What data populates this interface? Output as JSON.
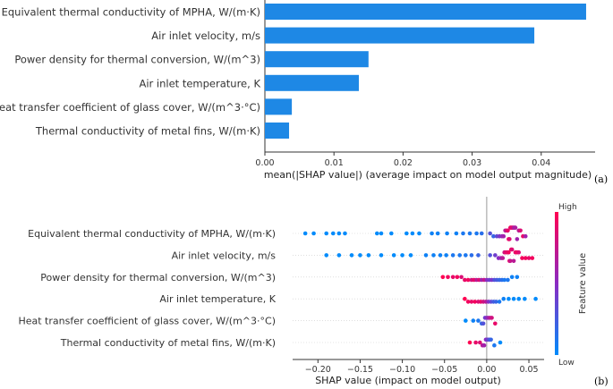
{
  "panel_labels": {
    "a": "(a)",
    "b": "(b)"
  },
  "chart_data": [
    {
      "type": "bar",
      "orientation": "horizontal",
      "categories": [
        "Equivalent thermal conductivity of MPHA, W/(m·K)",
        "Air inlet velocity, m/s",
        "Power density for thermal conversion, W/(m^3)",
        "Air inlet temperature, K",
        "Heat transfer coefficient of glass cover, W/(m^3·°C)",
        "Thermal conductivity of metal fins, W/(m·K)"
      ],
      "values": [
        0.0465,
        0.039,
        0.015,
        0.0136,
        0.0039,
        0.0035
      ],
      "xlabel": "mean(|SHAP value|) (average impact on model output magnitude)",
      "xlim": [
        0,
        0.0478
      ],
      "xticks": [
        0.0,
        0.01,
        0.02,
        0.03,
        0.04
      ],
      "xtick_labels": [
        "0.00",
        "0.01",
        "0.02",
        "0.03",
        "0.04"
      ],
      "bar_color": "#1e88e5"
    },
    {
      "type": "scatter",
      "subtype": "beeswarm",
      "categories": [
        "Equivalent thermal conductivity of MPHA, W/(m·K)",
        "Air inlet velocity, m/s",
        "Power density for thermal conversion, W/(m^3)",
        "Air inlet temperature, K",
        "Heat transfer coefficient of glass cover, W/(m^3·°C)",
        "Thermal conductivity of metal fins, W/(m·K)"
      ],
      "xlabel": "SHAP value (impact on model output)",
      "xlim": [
        -0.23,
        0.068
      ],
      "xticks": [
        -0.2,
        -0.15,
        -0.1,
        -0.05,
        0.0,
        0.05
      ],
      "xtick_labels": [
        "−0.20",
        "−0.15",
        "−0.10",
        "−0.05",
        "0.00",
        "0.05"
      ],
      "colorbar": {
        "label": "Feature value",
        "high": "High",
        "low": "Low",
        "high_color": "#ff0052",
        "mid_color": "#8a2bc2",
        "low_color": "#008bfb"
      },
      "series": [
        {
          "values": [
            {
              "x": -0.215,
              "v": 0
            },
            {
              "x": -0.205,
              "v": 0
            },
            {
              "x": -0.19,
              "v": 0
            },
            {
              "x": -0.182,
              "v": 0
            },
            {
              "x": -0.175,
              "v": 0
            },
            {
              "x": -0.168,
              "v": 0
            },
            {
              "x": -0.13,
              "v": 0
            },
            {
              "x": -0.125,
              "v": 0
            },
            {
              "x": -0.113,
              "v": 0
            },
            {
              "x": -0.095,
              "v": 0
            },
            {
              "x": -0.088,
              "v": 0
            },
            {
              "x": -0.08,
              "v": 0
            },
            {
              "x": -0.065,
              "v": 0.05
            },
            {
              "x": -0.058,
              "v": 0.05
            },
            {
              "x": -0.047,
              "v": 0.05
            },
            {
              "x": -0.036,
              "v": 0.05
            },
            {
              "x": -0.028,
              "v": 0.1
            },
            {
              "x": -0.02,
              "v": 0.1
            },
            {
              "x": -0.012,
              "v": 0.1
            },
            {
              "x": -0.006,
              "v": 0.15
            },
            {
              "x": 0.004,
              "v": 0.3
            },
            {
              "x": 0.008,
              "v": 0.2
            },
            {
              "x": 0.012,
              "v": 0.35
            },
            {
              "x": 0.015,
              "v": 0.45
            },
            {
              "x": 0.018,
              "v": 0.55
            },
            {
              "x": 0.02,
              "v": 0.6
            },
            {
              "x": 0.022,
              "v": 0.7
            },
            {
              "x": 0.024,
              "v": 0.8
            },
            {
              "x": 0.025,
              "v": 0.9
            },
            {
              "x": 0.026,
              "v": 0.95
            },
            {
              "x": 0.027,
              "v": 0.85
            },
            {
              "x": 0.028,
              "v": 0.9
            },
            {
              "x": 0.029,
              "v": 0.95
            },
            {
              "x": 0.03,
              "v": 0.8
            },
            {
              "x": 0.031,
              "v": 0.9
            },
            {
              "x": 0.032,
              "v": 0.7
            },
            {
              "x": 0.033,
              "v": 0.6
            },
            {
              "x": 0.034,
              "v": 0.65
            },
            {
              "x": 0.036,
              "v": 0.6
            },
            {
              "x": 0.038,
              "v": 0.7
            },
            {
              "x": 0.04,
              "v": 0.85
            },
            {
              "x": 0.043,
              "v": 0.9
            },
            {
              "x": 0.046,
              "v": 0.6
            }
          ]
        },
        {
          "values": [
            {
              "x": -0.19,
              "v": 0
            },
            {
              "x": -0.175,
              "v": 0
            },
            {
              "x": -0.16,
              "v": 0
            },
            {
              "x": -0.15,
              "v": 0
            },
            {
              "x": -0.14,
              "v": 0
            },
            {
              "x": -0.125,
              "v": 0
            },
            {
              "x": -0.11,
              "v": 0
            },
            {
              "x": -0.1,
              "v": 0
            },
            {
              "x": -0.09,
              "v": 0
            },
            {
              "x": -0.072,
              "v": 0.05
            },
            {
              "x": -0.063,
              "v": 0.05
            },
            {
              "x": -0.055,
              "v": 0.05
            },
            {
              "x": -0.048,
              "v": 0.05
            },
            {
              "x": -0.04,
              "v": 0.1
            },
            {
              "x": -0.032,
              "v": 0.1
            },
            {
              "x": -0.025,
              "v": 0.1
            },
            {
              "x": -0.018,
              "v": 0.15
            },
            {
              "x": -0.01,
              "v": 0.2
            },
            {
              "x": 0.004,
              "v": 0.3
            },
            {
              "x": 0.01,
              "v": 0.4
            },
            {
              "x": 0.014,
              "v": 0.5
            },
            {
              "x": 0.017,
              "v": 0.6
            },
            {
              "x": 0.019,
              "v": 0.7
            },
            {
              "x": 0.021,
              "v": 0.8
            },
            {
              "x": 0.023,
              "v": 0.9
            },
            {
              "x": 0.025,
              "v": 0.85
            },
            {
              "x": 0.026,
              "v": 0.95
            },
            {
              "x": 0.027,
              "v": 0.9
            },
            {
              "x": 0.028,
              "v": 0.75
            },
            {
              "x": 0.029,
              "v": 0.95
            },
            {
              "x": 0.03,
              "v": 0.85
            },
            {
              "x": 0.032,
              "v": 0.7
            },
            {
              "x": 0.034,
              "v": 0.9
            },
            {
              "x": 0.036,
              "v": 0.95
            },
            {
              "x": 0.038,
              "v": 0.85
            },
            {
              "x": 0.042,
              "v": 0.95
            },
            {
              "x": 0.046,
              "v": 0.95
            },
            {
              "x": 0.05,
              "v": 0.9
            },
            {
              "x": 0.054,
              "v": 0.95
            }
          ]
        },
        {
          "values": [
            {
              "x": -0.052,
              "v": 1
            },
            {
              "x": -0.046,
              "v": 0.95
            },
            {
              "x": -0.04,
              "v": 0.9
            },
            {
              "x": -0.035,
              "v": 0.95
            },
            {
              "x": -0.03,
              "v": 0.85
            },
            {
              "x": -0.026,
              "v": 0.9
            },
            {
              "x": -0.022,
              "v": 0.95
            },
            {
              "x": -0.018,
              "v": 0.8
            },
            {
              "x": -0.015,
              "v": 0.9
            },
            {
              "x": -0.012,
              "v": 0.7
            },
            {
              "x": -0.009,
              "v": 0.85
            },
            {
              "x": -0.006,
              "v": 0.6
            },
            {
              "x": -0.003,
              "v": 0.75
            },
            {
              "x": 0.0,
              "v": 0.5
            },
            {
              "x": 0.003,
              "v": 0.4
            },
            {
              "x": 0.006,
              "v": 0.45
            },
            {
              "x": 0.009,
              "v": 0.3
            },
            {
              "x": 0.012,
              "v": 0.25
            },
            {
              "x": 0.015,
              "v": 0.2
            },
            {
              "x": 0.018,
              "v": 0.15
            },
            {
              "x": 0.021,
              "v": 0.1
            },
            {
              "x": 0.025,
              "v": 0.1
            },
            {
              "x": 0.03,
              "v": 0.05
            },
            {
              "x": 0.036,
              "v": 0.05
            }
          ]
        },
        {
          "values": [
            {
              "x": -0.026,
              "v": 1
            },
            {
              "x": -0.022,
              "v": 0.95
            },
            {
              "x": -0.018,
              "v": 0.9
            },
            {
              "x": -0.014,
              "v": 0.95
            },
            {
              "x": -0.01,
              "v": 0.85
            },
            {
              "x": -0.007,
              "v": 0.9
            },
            {
              "x": -0.004,
              "v": 0.8
            },
            {
              "x": -0.001,
              "v": 0.7
            },
            {
              "x": 0.002,
              "v": 0.5
            },
            {
              "x": 0.005,
              "v": 0.35
            },
            {
              "x": 0.008,
              "v": 0.25
            },
            {
              "x": 0.011,
              "v": 0.2
            },
            {
              "x": 0.015,
              "v": 0.1
            },
            {
              "x": 0.02,
              "v": 0.05
            },
            {
              "x": 0.026,
              "v": 0
            },
            {
              "x": 0.032,
              "v": 0
            },
            {
              "x": 0.038,
              "v": 0
            },
            {
              "x": 0.045,
              "v": 0
            },
            {
              "x": 0.058,
              "v": 0
            }
          ]
        },
        {
          "values": [
            {
              "x": -0.025,
              "v": 0
            },
            {
              "x": -0.016,
              "v": 0.05
            },
            {
              "x": -0.01,
              "v": 0.1
            },
            {
              "x": -0.006,
              "v": 0.2
            },
            {
              "x": -0.004,
              "v": 0.3
            },
            {
              "x": -0.002,
              "v": 0.4
            },
            {
              "x": 0.0,
              "v": 0.5
            },
            {
              "x": 0.002,
              "v": 0.6
            },
            {
              "x": 0.004,
              "v": 0.7
            },
            {
              "x": 0.006,
              "v": 0.8
            },
            {
              "x": 0.01,
              "v": 0.9
            }
          ]
        },
        {
          "values": [
            {
              "x": -0.02,
              "v": 1
            },
            {
              "x": -0.013,
              "v": 0.9
            },
            {
              "x": -0.008,
              "v": 0.85
            },
            {
              "x": -0.005,
              "v": 0.7
            },
            {
              "x": -0.003,
              "v": 0.6
            },
            {
              "x": -0.001,
              "v": 0.5
            },
            {
              "x": 0.001,
              "v": 0.4
            },
            {
              "x": 0.003,
              "v": 0.3
            },
            {
              "x": 0.005,
              "v": 0.2
            },
            {
              "x": 0.009,
              "v": 0.1
            },
            {
              "x": 0.016,
              "v": 0
            }
          ]
        }
      ]
    }
  ]
}
